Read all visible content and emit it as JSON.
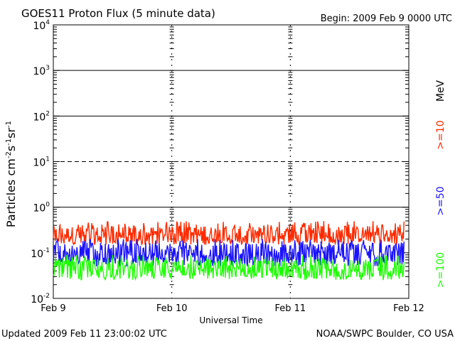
{
  "header": {
    "title": "GOES11 Proton Flux (5 minute data)",
    "begin": "Begin: 2009 Feb 9 0000 UTC"
  },
  "footer": {
    "updated": "Updated 2009 Feb 11 23:00:02 UTC",
    "source": "NOAA/SWPC Boulder, CO USA"
  },
  "colors": {
    "ge10": "#ff2a00",
    "ge50": "#1a12ff",
    "ge100": "#1cff00",
    "grid": "#000000"
  },
  "chart_data": {
    "type": "line",
    "title": "GOES11 Proton Flux (5 minute data)",
    "xlabel": "Universal Time",
    "ylabel_parts": {
      "prefix": "Particles cm",
      "e1": "-2",
      "s": "s",
      "e2": "-1",
      "sr": "sr",
      "e3": "-1"
    },
    "yscale": "log",
    "ylim": [
      0.01,
      10000
    ],
    "yticks": [
      {
        "value": 0.01,
        "base": "10",
        "exp": "-2"
      },
      {
        "value": 0.1,
        "base": "10",
        "exp": "-1"
      },
      {
        "value": 1,
        "base": "10",
        "exp": "0"
      },
      {
        "value": 10,
        "base": "10",
        "exp": "1"
      },
      {
        "value": 100,
        "base": "10",
        "exp": "2"
      },
      {
        "value": 1000,
        "base": "10",
        "exp": "3"
      },
      {
        "value": 10000,
        "base": "10",
        "exp": "4"
      }
    ],
    "hlines": [
      {
        "value": 1,
        "style": "solid"
      },
      {
        "value": 10,
        "style": "dashed"
      },
      {
        "value": 100,
        "style": "solid"
      },
      {
        "value": 1000,
        "style": "solid"
      }
    ],
    "x_start": "2009-02-09",
    "xlim_days": [
      0,
      3
    ],
    "xticks": [
      {
        "value": 0,
        "label": "Feb 9"
      },
      {
        "value": 1,
        "label": "Feb 10"
      },
      {
        "value": 2,
        "label": "Feb 11"
      },
      {
        "value": 3,
        "label": "Feb 12"
      }
    ],
    "series": [
      {
        "name": ">=10",
        "color": "#ff2a00",
        "x_end": 2.96,
        "ylow": 0.15,
        "yhigh": 0.5,
        "typical": 0.25
      },
      {
        "name": ">=50",
        "color": "#1a12ff",
        "x_end": 2.96,
        "ylow": 0.05,
        "yhigh": 0.2,
        "typical": 0.1
      },
      {
        "name": ">=100",
        "color": "#1cff00",
        "x_end": 2.96,
        "ylow": 0.025,
        "yhigh": 0.09,
        "typical": 0.045
      }
    ],
    "legend": {
      "position": "right",
      "unit": "MeV",
      "items": [
        {
          "label": ">=10",
          "color": "#ff2a00"
        },
        {
          "label": ">=50",
          "color": "#1a12ff"
        },
        {
          "label": ">=100",
          "color": "#1cff00"
        }
      ]
    }
  }
}
